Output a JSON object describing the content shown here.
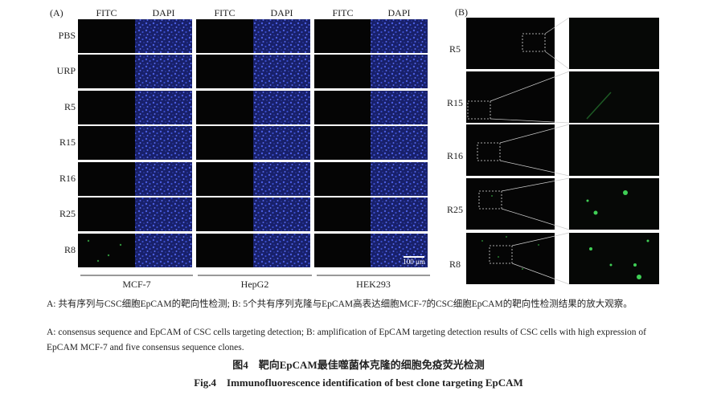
{
  "panel_a": {
    "label": "(A)",
    "columns": [
      "FITC",
      "DAPI",
      "FITC",
      "DAPI",
      "FITC",
      "DAPI"
    ],
    "rows": [
      "PBS",
      "URP",
      "R5",
      "R15",
      "R16",
      "R25",
      "R8"
    ],
    "groups": [
      "MCF-7",
      "HepG2",
      "HEK293"
    ],
    "scale_bar": "100 μm"
  },
  "panel_b": {
    "label": "(B)",
    "rows": [
      "R5",
      "R15",
      "R16",
      "R25",
      "R8"
    ]
  },
  "caption": {
    "zh": "A: 共有序列与CSC细胞EpCAM的靶向性检测; B: 5个共有序列克隆与EpCAM高表达细胞MCF-7的CSC细胞EpCAM的靶向性检测结果的放大观察。",
    "en": "A: consensus sequence and EpCAM of CSC cells targeting detection; B: amplification of EpCAM targeting detection results of CSC cells with high expression of EpCAM MCF-7 and five consensus sequence clones.",
    "title_zh": "图4　靶向EpCAM最佳噬菌体克隆的细胞免疫荧光检测",
    "title_en": "Fig.4　Immunofluorescence identification of best clone targeting EpCAM"
  }
}
